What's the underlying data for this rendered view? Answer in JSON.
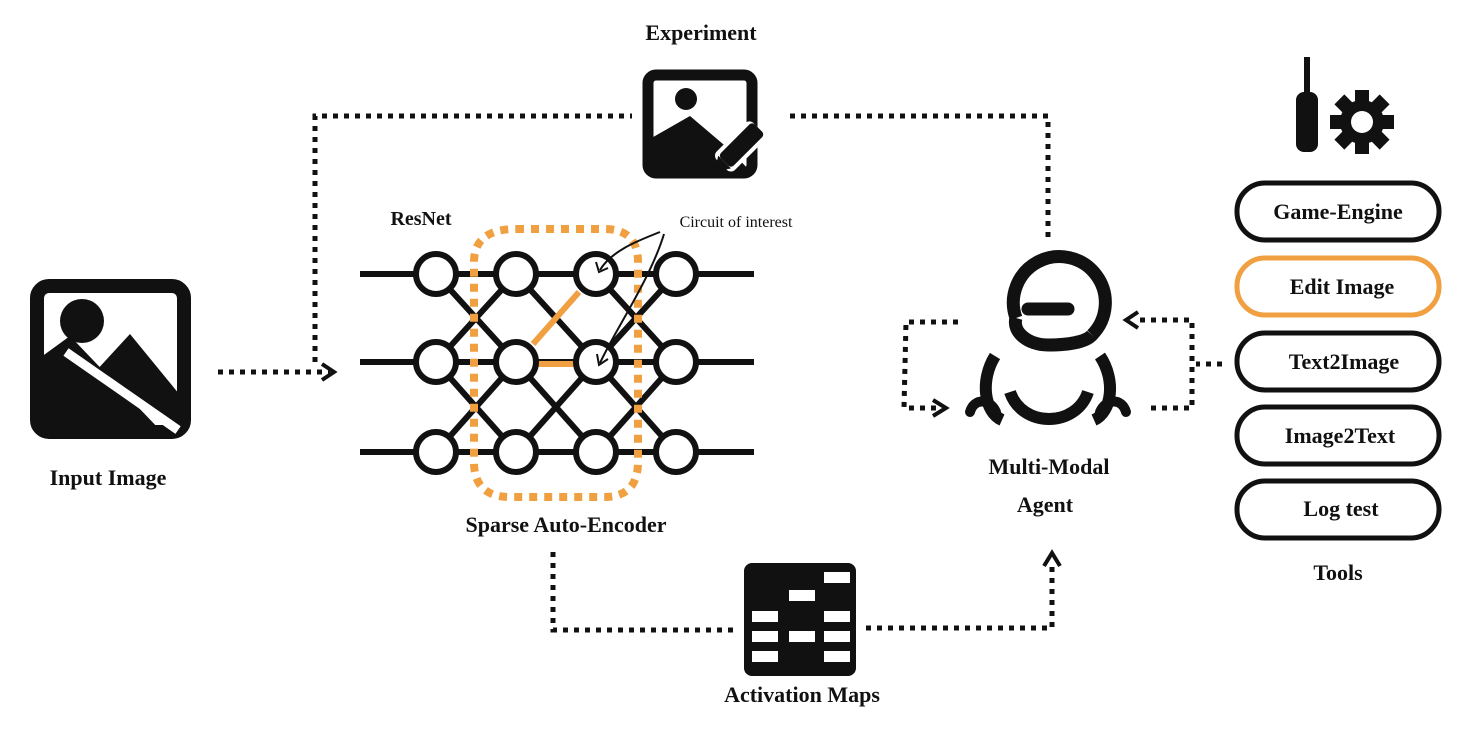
{
  "labels": {
    "experiment": "Experiment",
    "resnet": "ResNet",
    "circuit": "Circuit of interest",
    "input_image": "Input Image",
    "sae": "Sparse Auto-Encoder",
    "activation_maps": "Activation Maps",
    "agent_line1": "Multi-Modal",
    "agent_line2": "Agent",
    "tools": "Tools"
  },
  "tools": [
    {
      "label": "Game-Engine",
      "highlighted": false
    },
    {
      "label": "Edit Image",
      "highlighted": true
    },
    {
      "label": "Text2Image",
      "highlighted": false
    },
    {
      "label": "Image2Text",
      "highlighted": false
    },
    {
      "label": "Log test",
      "highlighted": false
    }
  ],
  "icons": {
    "input": "image-icon",
    "experiment": "image-edit-icon",
    "activation": "activation-map-icon",
    "agent": "robot-agent-icon",
    "tools": "screwdriver-gear-icon"
  },
  "colors": {
    "accent": "#F0A040",
    "ink": "#111111"
  }
}
